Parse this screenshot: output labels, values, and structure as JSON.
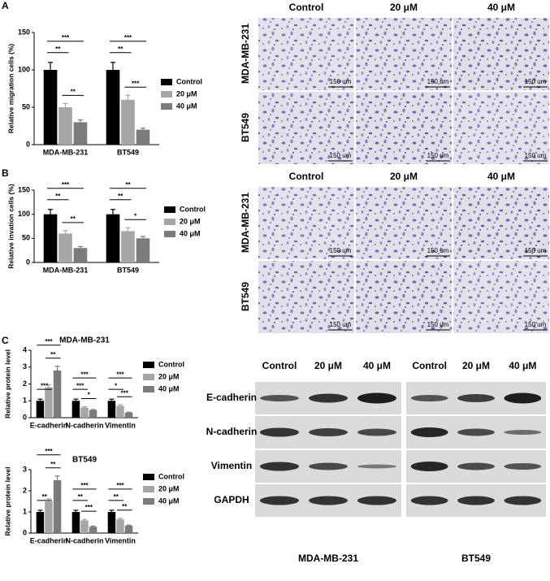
{
  "panels": [
    "A",
    "B",
    "C"
  ],
  "chart_data": [
    {
      "type": "bar",
      "ylabel": "Relative migration cells (%)",
      "categories": [
        "MDA-MB-231",
        "BT549"
      ],
      "series": [
        {
          "name": "Control",
          "color": "#000000",
          "values": [
            100,
            100
          ],
          "errors": [
            10,
            10
          ]
        },
        {
          "name": "20 μM",
          "color": "#a6a6a6",
          "values": [
            50,
            60
          ],
          "errors": [
            5,
            6
          ]
        },
        {
          "name": "40 μM",
          "color": "#7b7b7b",
          "values": [
            30,
            20
          ],
          "errors": [
            3,
            2
          ]
        }
      ],
      "annotations": [
        [
          "**",
          "***",
          "**"
        ],
        [
          "**",
          "***",
          "***"
        ]
      ],
      "ylim": [
        0,
        150
      ],
      "yticks": [
        0,
        50,
        100,
        150
      ]
    },
    {
      "type": "bar",
      "ylabel": "Relative invation cells (%)",
      "categories": [
        "MDA-MB-231",
        "BT549"
      ],
      "series": [
        {
          "name": "Control",
          "color": "#000000",
          "values": [
            100,
            100
          ],
          "errors": [
            10,
            10
          ]
        },
        {
          "name": "20 μM",
          "color": "#a6a6a6",
          "values": [
            60,
            65
          ],
          "errors": [
            6,
            7
          ]
        },
        {
          "name": "40 μM",
          "color": "#7b7b7b",
          "values": [
            30,
            50
          ],
          "errors": [
            3,
            4
          ]
        }
      ],
      "annotations": [
        [
          "**",
          "***",
          "**"
        ],
        [
          "**",
          "**",
          "*"
        ]
      ],
      "ylim": [
        0,
        150
      ],
      "yticks": [
        0,
        50,
        100,
        150
      ]
    },
    {
      "type": "bar",
      "title": "MDA-MB-231",
      "ylabel": "Relative protein level",
      "categories": [
        "E-cadherin",
        "N-cadherin",
        "Vimentin"
      ],
      "series": [
        {
          "name": "Control",
          "color": "#000000",
          "values": [
            1,
            1,
            1
          ],
          "errors": [
            0.1,
            0.1,
            0.1
          ]
        },
        {
          "name": "20 μM",
          "color": "#a6a6a6",
          "values": [
            1.8,
            0.6,
            0.7
          ],
          "errors": [
            0.15,
            0.05,
            0.06
          ]
        },
        {
          "name": "40 μM",
          "color": "#7b7b7b",
          "values": [
            2.8,
            0.45,
            0.3
          ],
          "errors": [
            0.25,
            0.04,
            0.03
          ]
        }
      ],
      "annotations": [
        [
          "***",
          "***",
          "**"
        ],
        [
          "***",
          "***",
          "*"
        ],
        [
          "*",
          "***",
          "***"
        ]
      ],
      "ylim": [
        0,
        4
      ],
      "yticks": [
        0,
        1,
        2,
        3,
        4
      ]
    },
    {
      "type": "bar",
      "title": "BT549",
      "ylabel": "Relative protein level",
      "categories": [
        "E-cadherin",
        "N-cadherin",
        "Vimentin"
      ],
      "series": [
        {
          "name": "Control",
          "color": "#000000",
          "values": [
            1,
            1,
            1
          ],
          "errors": [
            0.08,
            0.08,
            0.08
          ]
        },
        {
          "name": "20 μM",
          "color": "#a6a6a6",
          "values": [
            1.5,
            0.6,
            0.65
          ],
          "errors": [
            0.12,
            0.05,
            0.05
          ]
        },
        {
          "name": "40 μM",
          "color": "#7b7b7b",
          "values": [
            2.5,
            0.3,
            0.35
          ],
          "errors": [
            0.2,
            0.03,
            0.03
          ]
        }
      ],
      "annotations": [
        [
          "**",
          "***",
          "**"
        ],
        [
          "**",
          "***",
          "***"
        ],
        [
          "**",
          "***",
          "**"
        ]
      ],
      "ylim": [
        0,
        3
      ],
      "yticks": [
        0,
        1,
        2,
        3
      ]
    }
  ],
  "micrographs": {
    "columns": [
      "Control",
      "20 μM",
      "40 μM"
    ],
    "rows": [
      "MDA-MB-231",
      "BT549"
    ],
    "scale": "150 um"
  },
  "blot": {
    "lanes": [
      "Control",
      "20 μM",
      "40 μM"
    ],
    "proteins": [
      "E-cadherin",
      "N-cadherin",
      "Vimentin",
      "GAPDH"
    ],
    "cell_lines": [
      "MDA-MB-231",
      "BT549"
    ]
  }
}
